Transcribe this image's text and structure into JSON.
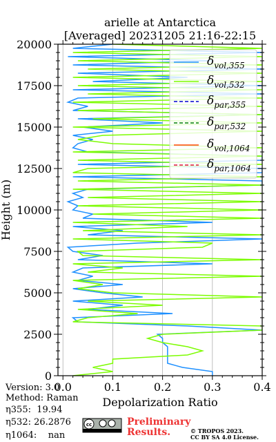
{
  "chart_data": {
    "type": "line",
    "title": [
      "arielle at Antarctica",
      "[Averaged] 20231205 21:16-22:15"
    ],
    "xlabel": "Depolarization Ratio",
    "ylabel": "Height (m)",
    "heights": [
      0,
      250,
      500,
      750,
      1000,
      1250,
      1500,
      1750,
      2000,
      2250,
      2500,
      2750,
      3000,
      3250,
      3500,
      3750,
      4000,
      4250,
      4500,
      4750,
      5000,
      5250,
      5500,
      5750,
      6000,
      6250,
      6500,
      6750,
      7000,
      7250,
      7500,
      7750,
      8000,
      8250,
      8500,
      8750,
      9000,
      9250,
      9500,
      9750,
      10000,
      10250,
      10500,
      10750,
      11000,
      11250,
      11500,
      11750,
      12000,
      12250,
      12500,
      12750,
      13000,
      13250,
      13500,
      13750,
      14000,
      14250,
      14500,
      14750,
      15000,
      15250,
      15500,
      15750,
      16000,
      16250,
      16500,
      16750,
      17000,
      17250,
      17500,
      17750,
      18000,
      18250,
      18500,
      18750,
      19000,
      19250,
      19500,
      19750,
      20000
    ],
    "series": [
      {
        "name": "δ",
        "subscript": "vol,355",
        "color": "#1e90ff",
        "dash": false,
        "values": [
          0.3,
          0.3,
          0.24,
          0.21,
          0.21,
          0.21,
          0.21,
          0.21,
          0.2,
          0.2,
          0.19,
          0.4,
          0.25,
          0.03,
          0.02,
          0.22,
          0.05,
          0.12,
          0.02,
          0.16,
          0.08,
          0.02,
          0.12,
          0.03,
          0.06,
          0.02,
          0.04,
          0.3,
          0.03,
          0.08,
          0.02,
          0.01,
          0.15,
          0.4,
          0.05,
          0.12,
          0.02,
          0.3,
          0.04,
          0.06,
          0.02,
          0.03,
          0.01,
          0.04,
          0.02,
          0.05,
          0.4,
          0.4,
          0.02,
          0.4,
          0.4,
          0.03,
          0.4,
          0.4,
          0.05,
          0.02,
          0.03,
          0.06,
          0.02,
          0.1,
          0.04,
          0.2,
          0.03,
          0.4,
          0.02,
          0.05,
          0.01,
          0.03,
          0.4,
          0.02,
          0.4,
          0.06,
          0.25,
          0.03,
          0.4,
          0.02,
          0.3,
          0.01,
          0.4,
          0.02,
          0.1
        ]
      },
      {
        "name": "δ",
        "subscript": "vol,532",
        "color": "#7cfc00",
        "dash": false,
        "values": [
          0.02,
          0.1,
          0.06,
          0.1,
          0.1,
          0.25,
          0.28,
          0.25,
          0.2,
          0.17,
          0.2,
          0.4,
          0.4,
          0.02,
          0.05,
          0.15,
          0.03,
          0.2,
          0.05,
          0.4,
          0.1,
          0.03,
          0.08,
          0.02,
          0.4,
          0.05,
          0.12,
          0.02,
          0.4,
          0.04,
          0.03,
          0.28,
          0.3,
          0.02,
          0.4,
          0.04,
          0.25,
          0.02,
          0.4,
          0.06,
          0.4,
          0.03,
          0.4,
          0.05,
          0.4,
          0.02,
          0.4,
          0.03,
          0.4,
          0.02,
          0.05,
          0.4,
          0.03,
          0.4,
          0.02,
          0.4,
          0.1,
          0.03,
          0.08,
          0.4,
          0.02,
          0.4,
          0.06,
          0.4,
          0.03,
          0.4,
          0.02,
          0.4,
          0.05,
          0.4,
          0.03,
          0.4,
          0.02,
          0.4,
          0.05,
          0.4,
          0.03,
          0.4,
          0.02,
          0.4,
          0.1
        ]
      },
      {
        "name": "δ",
        "subscript": "par,355",
        "color": "#0000cd",
        "dash": true
      },
      {
        "name": "δ",
        "subscript": "par,532",
        "color": "#008000",
        "dash": true
      },
      {
        "name": "δ",
        "subscript": "vol,1064",
        "color": "#ff4500",
        "dash": false
      },
      {
        "name": "δ",
        "subscript": "par,1064",
        "color": "#dc143c",
        "dash": true
      }
    ],
    "xlim": [
      -0.01,
      0.4
    ],
    "xticks": [
      {
        "value": 0,
        "label": "0.0"
      },
      0.1,
      0.2,
      0.3,
      0.4
    ],
    "ylim": [
      0,
      20000
    ],
    "yticks": [
      0,
      2500,
      5000,
      7500,
      10000,
      12500,
      15000,
      17500,
      20000
    ],
    "grid": true,
    "legend_position": "upper right"
  },
  "info": [
    "Version: 3.0",
    "Method: Raman",
    "η355:  19.94",
    "η532: 26.2876",
    "η1064:    nan"
  ],
  "notice": [
    "Preliminary",
    "Results."
  ],
  "copyright": [
    "© TROPOS 2023.",
    "CC BY SA 4.0 License."
  ]
}
